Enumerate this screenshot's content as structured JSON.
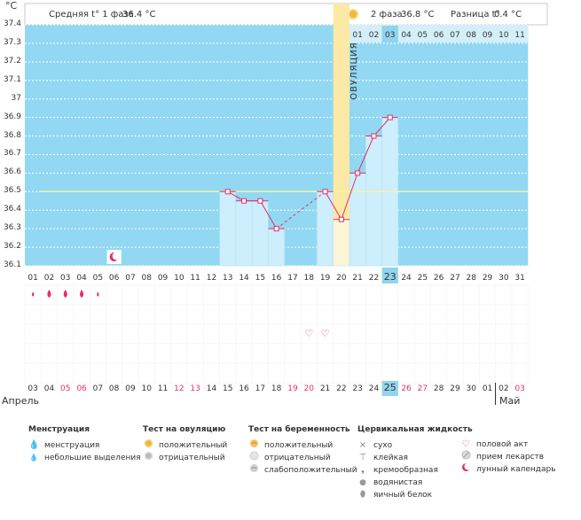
{
  "unit_label": "°C",
  "header": {
    "phase1_label": "Средняя t° 1 фаза",
    "phase1_value": "36.4 °C",
    "phase2_label": "2 фаза",
    "phase2_value": "36.8 °C",
    "diff_label": "Разница t°",
    "diff_value": "0.4 °C"
  },
  "ovulation_label": "ОВУЛЯЦИЯ",
  "cycle_days_top": [
    "01",
    "02",
    "03",
    "04",
    "05",
    "06",
    "07",
    "08",
    "09",
    "10",
    "11"
  ],
  "colors": {
    "chart_bg": "#92d8f2",
    "bar_fill": "#cdeefc",
    "ovulation": "#fde9a6",
    "line": "#e0306a",
    "average": "#f6f2a8",
    "today": "#8fd5f0"
  },
  "chart_data": {
    "type": "line",
    "title": "",
    "ylabel": "°C",
    "ylim": [
      36.1,
      37.4
    ],
    "yticks": [
      "37.4",
      "37.3",
      "37.2",
      "37.1",
      "37",
      "36.9",
      "36.8",
      "36.7",
      "36.6",
      "36.5",
      "36.4",
      "36.3",
      "36.2",
      "36.1"
    ],
    "x": [
      "01",
      "02",
      "03",
      "04",
      "05",
      "06",
      "07",
      "08",
      "09",
      "10",
      "11",
      "12",
      "13",
      "14",
      "15",
      "16",
      "17",
      "18",
      "19",
      "20",
      "21",
      "22",
      "23",
      "24",
      "25",
      "26",
      "27",
      "28",
      "29",
      "30",
      "31"
    ],
    "series": [
      {
        "name": "temperature",
        "points": [
          {
            "day": 13,
            "value": 36.5
          },
          {
            "day": 14,
            "value": 36.45
          },
          {
            "day": 15,
            "value": 36.45
          },
          {
            "day": 16,
            "value": 36.3
          },
          {
            "day": 19,
            "value": 36.5
          },
          {
            "day": 20,
            "value": 36.35
          },
          {
            "day": 21,
            "value": 36.6
          },
          {
            "day": 22,
            "value": 36.8
          },
          {
            "day": 23,
            "value": 36.9
          }
        ]
      }
    ],
    "average_line": 36.5,
    "ovulation_day": 20,
    "today_index": 23,
    "moon_day": 6
  },
  "calendar_days": [
    "03",
    "04",
    "05",
    "06",
    "07",
    "08",
    "09",
    "10",
    "11",
    "12",
    "13",
    "14",
    "15",
    "16",
    "17",
    "18",
    "19",
    "20",
    "21",
    "22",
    "23",
    "24",
    "25",
    "26",
    "27",
    "28",
    "29",
    "30",
    "01",
    "02",
    "03"
  ],
  "weekend_days": [
    2,
    3,
    9,
    10,
    16,
    17,
    23,
    24,
    30
  ],
  "today_index_bottom": 22,
  "months": {
    "april": "Апрель",
    "may": "Май"
  },
  "menstruation_days": [
    {
      "day": 1,
      "type": "light"
    },
    {
      "day": 2,
      "type": "heavy"
    },
    {
      "day": 3,
      "type": "heavy"
    },
    {
      "day": 4,
      "type": "heavy"
    },
    {
      "day": 5,
      "type": "light"
    }
  ],
  "intercourse_days": [
    18,
    19
  ],
  "legend": {
    "menstruation": {
      "title": "Менструация",
      "items": [
        "менструация",
        "небольшие выделения"
      ]
    },
    "ovulation_test": {
      "title": "Тест на овуляцию",
      "items": [
        "положительный",
        "отрицательный"
      ]
    },
    "pregnancy_test": {
      "title": "Тест на беременность",
      "items": [
        "положительный",
        "отрицательный",
        "слабоположительный"
      ]
    },
    "cervical": {
      "title": "Цервикальная жидкость",
      "items": [
        "сухо",
        "клейкая",
        "кремообразная",
        "водянистая",
        "яичный белок"
      ]
    },
    "other": {
      "items": [
        "половой акт",
        "прием лекарств",
        "лунный календарь"
      ]
    }
  }
}
